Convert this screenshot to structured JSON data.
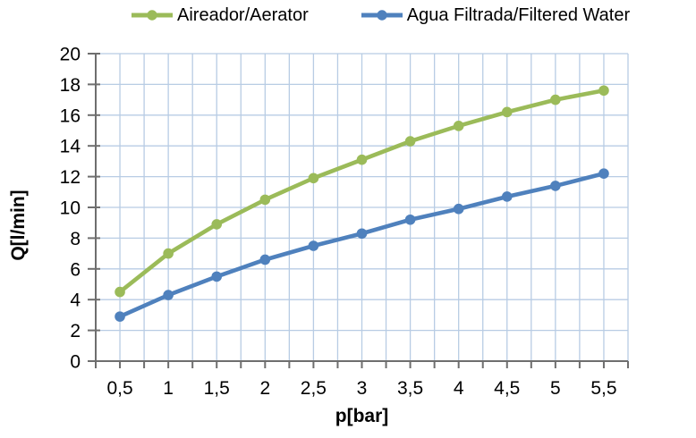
{
  "chart_data": {
    "type": "line",
    "title": "",
    "xlabel": "p[bar]",
    "ylabel": "Q[l/min]",
    "categories": [
      "0,5",
      "1",
      "1,5",
      "2",
      "2,5",
      "3",
      "3,5",
      "4",
      "4,5",
      "5",
      "5,5"
    ],
    "x_values": [
      0.5,
      1,
      1.5,
      2,
      2.5,
      3,
      3.5,
      4,
      4.5,
      5,
      5.5
    ],
    "series": [
      {
        "name": "Aireador/Aerator",
        "color": "#9BBB59",
        "values": [
          4.5,
          7.0,
          8.9,
          10.5,
          11.9,
          13.1,
          14.3,
          15.3,
          16.2,
          17.0,
          17.6
        ]
      },
      {
        "name": "Agua Filtrada/Filtered Water",
        "color": "#4F81BD",
        "values": [
          2.9,
          4.3,
          5.5,
          6.6,
          7.5,
          8.3,
          9.2,
          9.9,
          10.7,
          11.4,
          12.2
        ]
      }
    ],
    "ylim": [
      0,
      20
    ],
    "yticks": [
      0,
      2,
      4,
      6,
      8,
      10,
      12,
      14,
      16,
      18,
      20
    ],
    "grid": {
      "on": true,
      "color": "#B8CCE4",
      "x_subdivisions_per_category": 2
    },
    "legend_position": "top",
    "marker": "circle",
    "colors": {
      "axis": "#6E6E6E",
      "gridline": "#B8CCE4",
      "text": "#000000",
      "background": "#FFFFFF"
    }
  }
}
